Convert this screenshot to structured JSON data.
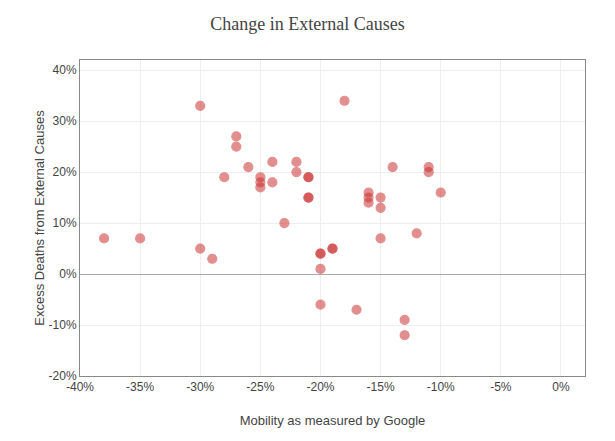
{
  "chart_data": {
    "type": "scatter",
    "title": "Change in External Causes",
    "xlabel": "Mobility as measured by Google",
    "ylabel": "Excess Deaths from External Causes",
    "x": [
      -0.38,
      -0.35,
      -0.3,
      -0.3,
      -0.29,
      -0.28,
      -0.27,
      -0.27,
      -0.26,
      -0.25,
      -0.25,
      -0.25,
      -0.24,
      -0.24,
      -0.23,
      -0.22,
      -0.22,
      -0.21,
      -0.21,
      -0.21,
      -0.21,
      -0.2,
      -0.2,
      -0.2,
      -0.2,
      -0.19,
      -0.19,
      -0.18,
      -0.17,
      -0.16,
      -0.16,
      -0.16,
      -0.15,
      -0.15,
      -0.15,
      -0.14,
      -0.13,
      -0.13,
      -0.12,
      -0.11,
      -0.11,
      -0.1
    ],
    "values": [
      0.07,
      0.07,
      0.33,
      0.05,
      0.03,
      0.19,
      0.27,
      0.25,
      0.21,
      0.19,
      0.18,
      0.17,
      0.22,
      0.18,
      0.1,
      0.22,
      0.2,
      0.15,
      0.15,
      0.19,
      0.19,
      0.04,
      0.04,
      0.01,
      -0.06,
      0.05,
      0.05,
      0.34,
      -0.07,
      0.16,
      0.15,
      0.14,
      0.15,
      0.13,
      0.07,
      0.21,
      -0.09,
      -0.12,
      0.08,
      0.21,
      0.2,
      0.16
    ],
    "color": "#cc3333",
    "marker": "circle",
    "xlim": [
      -0.4,
      0.02
    ],
    "ylim": [
      -0.2,
      0.42
    ],
    "xticks": [
      {
        "value": -0.4,
        "label": "-40%"
      },
      {
        "value": -0.35,
        "label": "-35%"
      },
      {
        "value": -0.3,
        "label": "-30%"
      },
      {
        "value": -0.25,
        "label": "-25%"
      },
      {
        "value": -0.2,
        "label": "-20%"
      },
      {
        "value": -0.15,
        "label": "-15%"
      },
      {
        "value": -0.1,
        "label": "-10%"
      },
      {
        "value": -0.05,
        "label": "-5%"
      },
      {
        "value": 0.0,
        "label": "0%"
      }
    ],
    "yticks": [
      {
        "value": -0.2,
        "label": "-20%"
      },
      {
        "value": -0.1,
        "label": "-10%"
      },
      {
        "value": 0.0,
        "label": "0%"
      },
      {
        "value": 0.1,
        "label": "10%"
      },
      {
        "value": 0.2,
        "label": "20%"
      },
      {
        "value": 0.3,
        "label": "30%"
      },
      {
        "value": 0.4,
        "label": "40%"
      }
    ],
    "grid": true
  }
}
